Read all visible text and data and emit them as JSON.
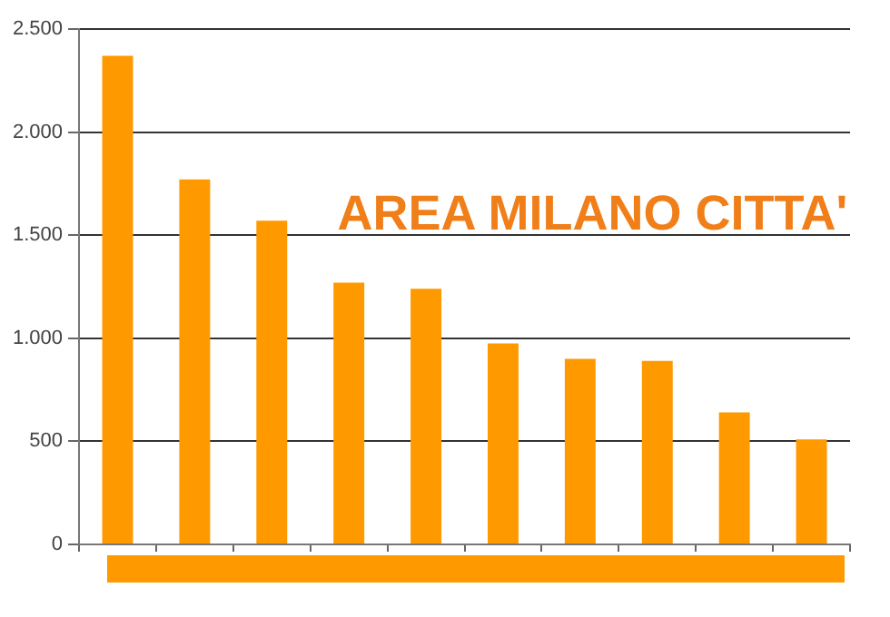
{
  "chart_data": {
    "type": "bar",
    "title": "AREA MILANO CITTA'",
    "categories": [
      null,
      null,
      null,
      null,
      null,
      null,
      null,
      null,
      null,
      null
    ],
    "values": [
      2370,
      1770,
      1570,
      1270,
      1240,
      975,
      900,
      890,
      640,
      510
    ],
    "color": "#ff9900",
    "ylim": [
      0,
      2500
    ],
    "yticks": [
      {
        "value": 0,
        "label": "0"
      },
      {
        "value": 500,
        "label": "500"
      },
      {
        "value": 1000,
        "label": "1.000"
      },
      {
        "value": 1500,
        "label": "1.500"
      },
      {
        "value": 2000,
        "label": "2.000"
      },
      {
        "value": 2500,
        "label": "2.500"
      }
    ],
    "grid": "y",
    "tick_labels": "y",
    "legend": false
  }
}
